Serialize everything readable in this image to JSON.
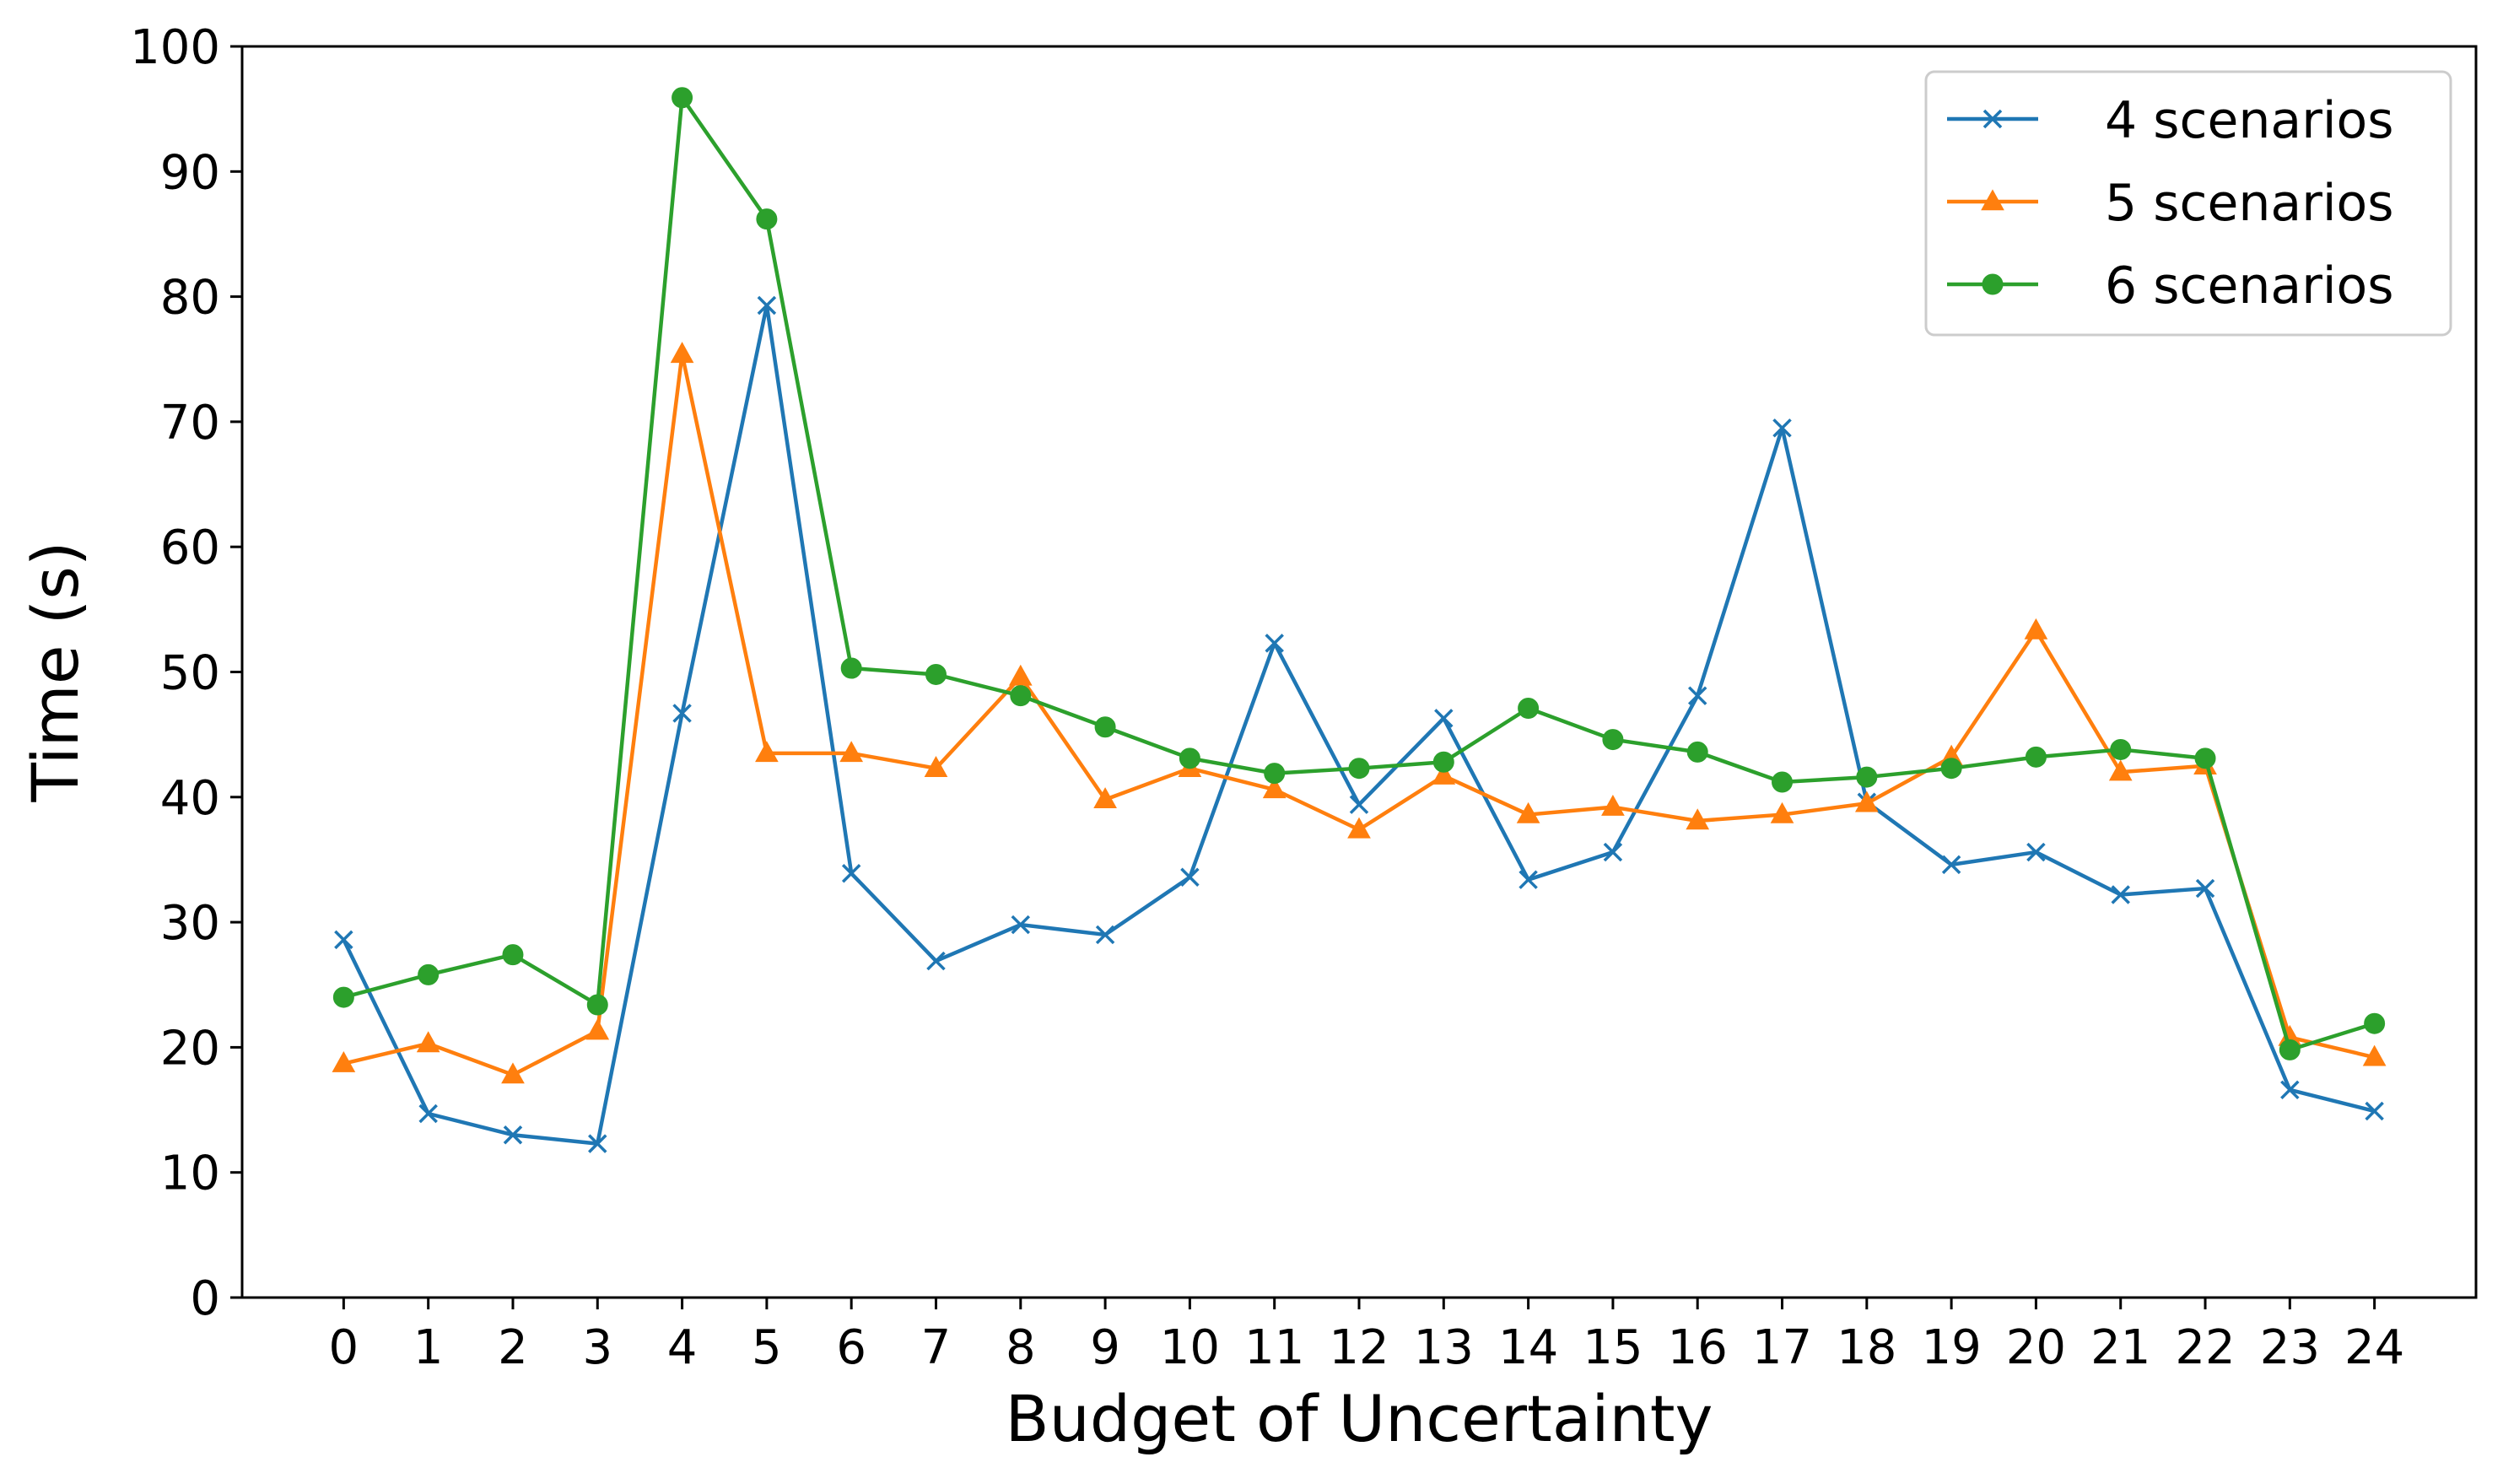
{
  "chart_data": {
    "type": "line",
    "title": "",
    "xlabel": "Budget of Uncertainty",
    "ylabel": "Time (s)",
    "x": [
      0,
      1,
      2,
      3,
      4,
      5,
      6,
      7,
      8,
      9,
      10,
      11,
      12,
      13,
      14,
      15,
      16,
      17,
      18,
      19,
      20,
      21,
      22,
      23,
      24
    ],
    "xticks": [
      "0",
      "1",
      "2",
      "3",
      "4",
      "5",
      "6",
      "7",
      "8",
      "9",
      "10",
      "11",
      "12",
      "13",
      "14",
      "15",
      "16",
      "17",
      "18",
      "19",
      "20",
      "21",
      "22",
      "23",
      "24"
    ],
    "yticks": [
      "0",
      "10",
      "20",
      "30",
      "40",
      "50",
      "60",
      "70",
      "80",
      "90",
      "100"
    ],
    "ylim": [
      0,
      100
    ],
    "xlim": [
      -1.2,
      25.2
    ],
    "grid": false,
    "legend_position": "top-right",
    "series": [
      {
        "name": "4 scenarios",
        "color": "#1f77b4",
        "marker": "x",
        "values": [
          28.6,
          14.7,
          13.0,
          12.3,
          46.7,
          79.3,
          33.9,
          26.9,
          29.8,
          29.0,
          33.6,
          52.3,
          39.4,
          46.3,
          33.4,
          35.6,
          48.1,
          69.5,
          39.6,
          34.6,
          35.6,
          32.2,
          32.7,
          16.6,
          14.9
        ]
      },
      {
        "name": "5 scenarios",
        "color": "#ff7f0e",
        "marker": "triangle",
        "values": [
          18.7,
          20.3,
          17.8,
          21.3,
          75.4,
          43.5,
          43.5,
          42.3,
          49.6,
          39.8,
          42.3,
          40.6,
          37.4,
          41.7,
          38.6,
          39.2,
          38.1,
          38.6,
          39.5,
          43.2,
          53.3,
          42.0,
          42.5,
          20.8,
          19.2
        ]
      },
      {
        "name": "6 scenarios",
        "color": "#2ca02c",
        "marker": "circle",
        "values": [
          24.0,
          25.8,
          27.4,
          23.4,
          95.9,
          86.2,
          50.3,
          49.8,
          48.1,
          45.6,
          43.1,
          41.9,
          42.3,
          42.8,
          47.1,
          44.6,
          43.6,
          41.2,
          41.6,
          42.3,
          43.2,
          43.8,
          43.1,
          19.8,
          21.9
        ]
      }
    ]
  }
}
